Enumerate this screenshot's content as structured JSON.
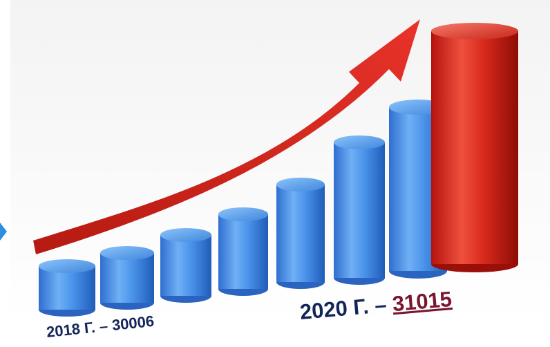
{
  "labels": [
    {
      "prefix": "2018 Г. – ",
      "value": 30006
    },
    {
      "prefix": "2020 Г. – ",
      "value": 31015
    }
  ]
}
